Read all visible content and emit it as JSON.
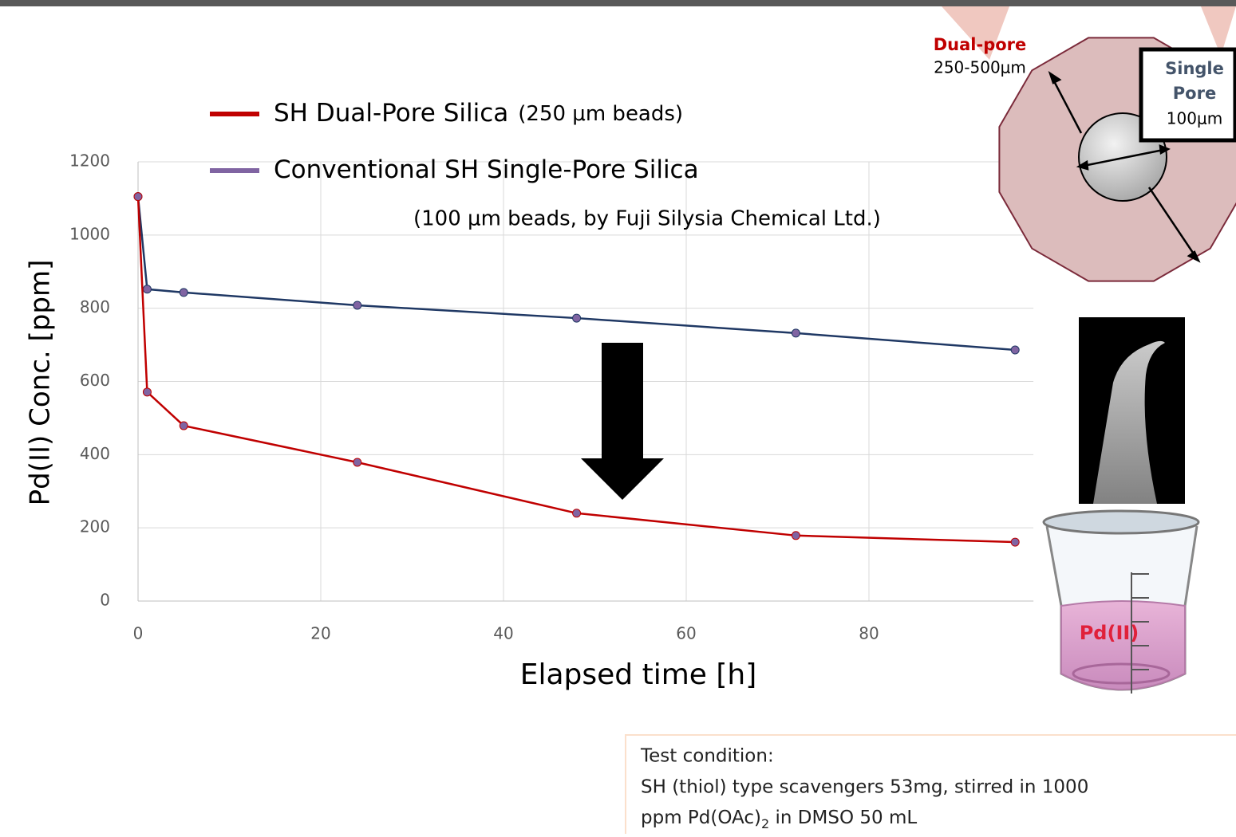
{
  "chart_data": {
    "type": "line",
    "x_label": "Elapsed time [h]",
    "y_label": "Pd(II) Conc. [ppm]",
    "xlim": [
      0,
      98
    ],
    "xticks": [
      0,
      20,
      40,
      60,
      80
    ],
    "ylim": [
      0,
      1200
    ],
    "yticks": [
      0,
      200,
      400,
      600,
      800,
      1000,
      1200
    ],
    "grid": true,
    "x": [
      0,
      1,
      5,
      24,
      48,
      72,
      96
    ],
    "series": [
      {
        "name": "SH Dual-Pore Silica",
        "name_note": "(250 μm beads)",
        "color": "#c00000",
        "line_color": "#c00000",
        "marker_color": "#8064a2",
        "values": [
          1105,
          571,
          479,
          379,
          240,
          179,
          161
        ]
      },
      {
        "name": "Conventional SH Single-Pore Silica",
        "name_note": "(100 μm beads, by Fuji Silysia Chemical Ltd.)",
        "color": "#8064a2",
        "line_color": "#1f3864",
        "marker_color": "#8064a2",
        "values": [
          1105,
          852,
          843,
          808,
          773,
          732,
          686
        ]
      }
    ]
  },
  "illustration": {
    "dual_pore_title": "Dual-pore",
    "dual_pore_size": "250-500μm",
    "single_pore_title_1": "Single",
    "single_pore_title_2": "Pore",
    "single_pore_size": "100μm",
    "beaker_label": "Pd(II)"
  },
  "test_condition": {
    "title": "Test condition:",
    "line_1": "SH (thiol) type scavengers 53mg, stirred in 1000",
    "line_2_a": "ppm Pd(OAc)",
    "line_2_sub": "2",
    "line_2_b": " in DMSO 50 mL"
  }
}
